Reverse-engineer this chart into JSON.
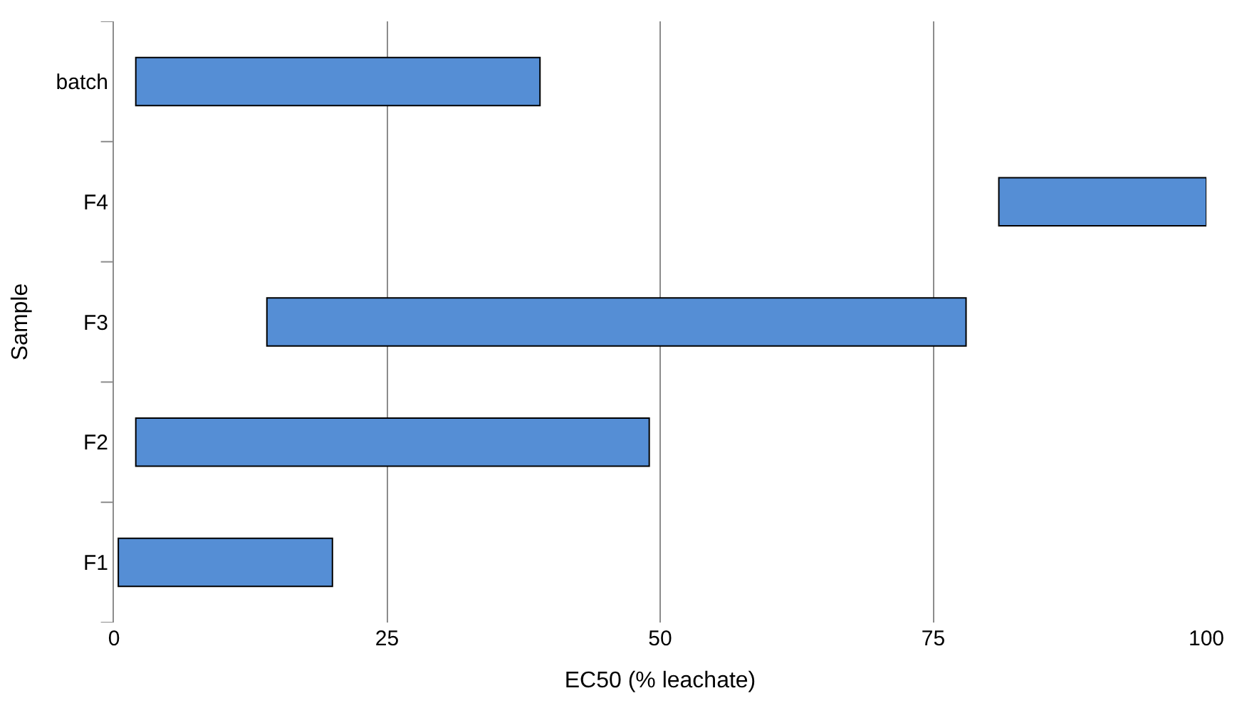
{
  "chart_data": {
    "type": "bar",
    "orientation": "horizontal",
    "xlabel": "EC50 (% leachate)",
    "ylabel": "Sample",
    "categories": [
      "batch",
      "F4",
      "F3",
      "F2",
      "F1"
    ],
    "base": [
      2,
      81,
      14,
      2,
      0.4
    ],
    "values": [
      37,
      19,
      64,
      47,
      19.6
    ],
    "color": "#558ed5",
    "xlim": [
      0,
      100
    ],
    "xticks": [
      0,
      25,
      50,
      75,
      100
    ],
    "grid": "x",
    "legend": false
  }
}
